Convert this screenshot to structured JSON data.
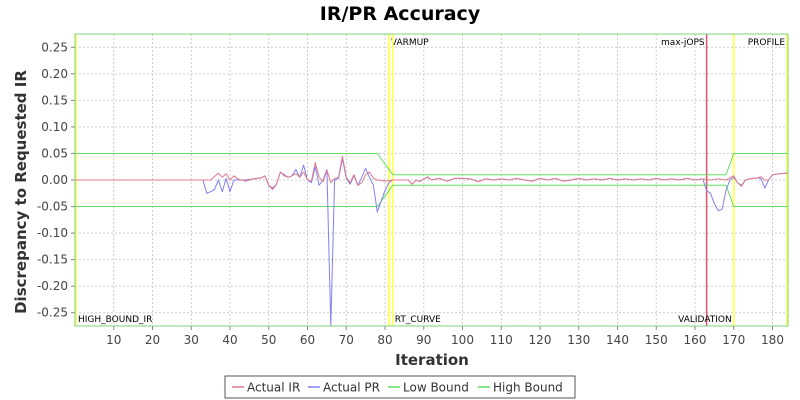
{
  "chart_data": {
    "type": "line",
    "title": "IR/PR Accuracy",
    "xlabel": "Iteration",
    "ylabel": "Discrepancy to Requested IR",
    "xlim": [
      0,
      184
    ],
    "ylim": [
      -0.275,
      0.275
    ],
    "x_ticks": [
      10,
      20,
      30,
      40,
      50,
      60,
      70,
      80,
      90,
      100,
      110,
      120,
      130,
      140,
      150,
      160,
      170,
      180
    ],
    "y_ticks": [
      0.25,
      0.2,
      0.15,
      0.1,
      0.05,
      0.0,
      -0.05,
      -0.1,
      -0.15,
      -0.2,
      -0.25
    ],
    "y_tick_labels": [
      "0.25",
      "0.20",
      "0.15",
      "0.10",
      "0.05",
      "0.00",
      "-0.05",
      "-0.10",
      "-0.15",
      "-0.20",
      "-0.25"
    ],
    "grid": true,
    "legend_position": "bottom",
    "colors": {
      "actual_ir": "#e07b8c",
      "actual_pr": "#8080f0",
      "low_bound": "#60e060",
      "high_bound": "#60e060",
      "marker_yellow": "#ffff66",
      "marker_red": "#e0506a",
      "plot_border": "#7bd67b"
    },
    "series": [
      {
        "name": "Actual IR",
        "key": "actual_ir",
        "points": [
          [
            0,
            0
          ],
          [
            33,
            0
          ],
          [
            35,
            0
          ],
          [
            37,
            0.013
          ],
          [
            38,
            0.005
          ],
          [
            39,
            0.012
          ],
          [
            40,
            0.0
          ],
          [
            41,
            0.008
          ],
          [
            42,
            0.002
          ],
          [
            44,
            -0.002
          ],
          [
            46,
            0.002
          ],
          [
            48,
            0.004
          ],
          [
            49,
            0.008
          ],
          [
            50,
            -0.01
          ],
          [
            51,
            -0.018
          ],
          [
            52,
            -0.008
          ],
          [
            53,
            0.015
          ],
          [
            54,
            0.01
          ],
          [
            55,
            0.005
          ],
          [
            56,
            0.008
          ],
          [
            57,
            0.012
          ],
          [
            58,
            0.005
          ],
          [
            59,
            0.015
          ],
          [
            60,
            0.0
          ],
          [
            61,
            -0.002
          ],
          [
            62,
            0.033
          ],
          [
            63,
            0.005
          ],
          [
            64,
            -0.003
          ],
          [
            65,
            0.018
          ],
          [
            66,
            -0.005
          ],
          [
            67,
            0.003
          ],
          [
            68,
            0.005
          ],
          [
            69,
            0.045
          ],
          [
            70,
            0.005
          ],
          [
            71,
            -0.005
          ],
          [
            72,
            0.01
          ],
          [
            73,
            -0.01
          ],
          [
            74,
            -0.005
          ],
          [
            75,
            0.01
          ],
          [
            76,
            0.015
          ],
          [
            77,
            0.003
          ],
          [
            78,
            0.0
          ],
          [
            80,
            -0.002
          ],
          [
            82,
            0.0
          ],
          [
            84,
            0.0
          ],
          [
            86,
            0.0
          ],
          [
            87,
            -0.008
          ],
          [
            88,
            0.0
          ],
          [
            89,
            -0.003
          ],
          [
            90,
            0.002
          ],
          [
            91,
            0.005
          ],
          [
            92,
            0.0
          ],
          [
            94,
            0.003
          ],
          [
            96,
            -0.002
          ],
          [
            98,
            0.003
          ],
          [
            100,
            0.003
          ],
          [
            102,
            0.002
          ],
          [
            104,
            -0.003
          ],
          [
            106,
            0.002
          ],
          [
            108,
            0.0
          ],
          [
            110,
            0.002
          ],
          [
            112,
            0.0
          ],
          [
            114,
            0.003
          ],
          [
            116,
            0.0
          ],
          [
            118,
            -0.002
          ],
          [
            120,
            0.003
          ],
          [
            122,
            0.0
          ],
          [
            124,
            0.003
          ],
          [
            126,
            -0.002
          ],
          [
            128,
            0.0
          ],
          [
            130,
            0.003
          ],
          [
            132,
            0.0
          ],
          [
            134,
            0.002
          ],
          [
            136,
            0.0
          ],
          [
            138,
            0.003
          ],
          [
            140,
            0.0
          ],
          [
            142,
            0.002
          ],
          [
            144,
            0.0
          ],
          [
            146,
            0.002
          ],
          [
            148,
            0.0
          ],
          [
            150,
            0.003
          ],
          [
            152,
            0.0
          ],
          [
            154,
            0.002
          ],
          [
            156,
            0.0
          ],
          [
            158,
            0.003
          ],
          [
            160,
            0.0
          ],
          [
            162,
            0.002
          ],
          [
            164,
            0.0
          ],
          [
            166,
            0.002
          ],
          [
            168,
            0.0
          ],
          [
            170,
            0.008
          ],
          [
            171,
            -0.005
          ],
          [
            172,
            -0.012
          ],
          [
            173,
            0.0
          ],
          [
            174,
            0.002
          ],
          [
            176,
            0.004
          ],
          [
            177,
            0.006
          ],
          [
            178,
            0.0
          ],
          [
            179,
            0.0
          ],
          [
            180,
            0.01
          ],
          [
            182,
            0.012
          ],
          [
            184,
            0.013
          ]
        ]
      },
      {
        "name": "Actual PR",
        "key": "actual_pr",
        "points": [
          [
            0,
            0
          ],
          [
            33,
            0
          ],
          [
            34,
            -0.025
          ],
          [
            35,
            -0.022
          ],
          [
            36,
            -0.018
          ],
          [
            37,
            0.0
          ],
          [
            38,
            -0.022
          ],
          [
            39,
            0.003
          ],
          [
            40,
            -0.022
          ],
          [
            41,
            0.0
          ],
          [
            42,
            0.0
          ],
          [
            44,
            0.0
          ],
          [
            46,
            0.002
          ],
          [
            48,
            0.004
          ],
          [
            49,
            0.008
          ],
          [
            50,
            -0.01
          ],
          [
            51,
            -0.015
          ],
          [
            52,
            -0.008
          ],
          [
            53,
            0.015
          ],
          [
            54,
            0.008
          ],
          [
            55,
            0.005
          ],
          [
            56,
            0.008
          ],
          [
            57,
            0.02
          ],
          [
            58,
            0.005
          ],
          [
            59,
            0.028
          ],
          [
            60,
            0.0
          ],
          [
            61,
            -0.005
          ],
          [
            62,
            0.025
          ],
          [
            63,
            -0.01
          ],
          [
            64,
            0.0
          ],
          [
            65,
            0.02
          ],
          [
            66,
            -0.275
          ],
          [
            67,
            0.0
          ],
          [
            68,
            0.003
          ],
          [
            69,
            0.04
          ],
          [
            70,
            0.003
          ],
          [
            71,
            -0.008
          ],
          [
            72,
            0.008
          ],
          [
            73,
            -0.01
          ],
          [
            74,
            0.005
          ],
          [
            75,
            0.022
          ],
          [
            76,
            0.005
          ],
          [
            77,
            -0.01
          ],
          [
            78,
            -0.06
          ],
          [
            79,
            -0.04
          ],
          [
            80,
            -0.02
          ],
          [
            81,
            -0.005
          ],
          [
            82,
            0.0
          ],
          [
            84,
            0.0
          ],
          [
            86,
            0.0
          ],
          [
            87,
            -0.008
          ],
          [
            88,
            0.0
          ],
          [
            89,
            -0.003
          ],
          [
            90,
            0.002
          ],
          [
            91,
            0.006
          ],
          [
            92,
            0.0
          ],
          [
            94,
            0.003
          ],
          [
            96,
            -0.002
          ],
          [
            98,
            0.003
          ],
          [
            100,
            0.003
          ],
          [
            102,
            0.002
          ],
          [
            104,
            -0.003
          ],
          [
            106,
            0.002
          ],
          [
            108,
            0.0
          ],
          [
            110,
            0.002
          ],
          [
            112,
            0.0
          ],
          [
            114,
            0.003
          ],
          [
            116,
            0.0
          ],
          [
            118,
            -0.002
          ],
          [
            120,
            0.003
          ],
          [
            122,
            0.0
          ],
          [
            124,
            0.003
          ],
          [
            126,
            -0.002
          ],
          [
            128,
            0.0
          ],
          [
            130,
            0.003
          ],
          [
            132,
            0.0
          ],
          [
            134,
            0.002
          ],
          [
            136,
            0.0
          ],
          [
            138,
            0.003
          ],
          [
            140,
            0.0
          ],
          [
            142,
            0.002
          ],
          [
            144,
            0.0
          ],
          [
            146,
            0.002
          ],
          [
            148,
            0.0
          ],
          [
            150,
            0.003
          ],
          [
            152,
            0.0
          ],
          [
            154,
            0.002
          ],
          [
            156,
            0.0
          ],
          [
            158,
            0.003
          ],
          [
            160,
            0.0
          ],
          [
            162,
            0.002
          ],
          [
            163,
            -0.02
          ],
          [
            164,
            -0.025
          ],
          [
            165,
            -0.045
          ],
          [
            166,
            -0.058
          ],
          [
            167,
            -0.055
          ],
          [
            168,
            -0.02
          ],
          [
            169,
            0.0
          ],
          [
            170,
            0.005
          ],
          [
            171,
            -0.005
          ],
          [
            172,
            -0.01
          ],
          [
            173,
            0.0
          ],
          [
            174,
            0.002
          ],
          [
            176,
            0.004
          ],
          [
            177,
            0.003
          ],
          [
            178,
            -0.015
          ],
          [
            179,
            0.0
          ],
          [
            180,
            0.01
          ],
          [
            182,
            0.012
          ],
          [
            184,
            0.013
          ]
        ]
      },
      {
        "name": "Low Bound",
        "key": "low_bound",
        "points": [
          [
            0,
            -0.05
          ],
          [
            78,
            -0.05
          ],
          [
            82,
            -0.01
          ],
          [
            168,
            -0.01
          ],
          [
            170,
            -0.05
          ],
          [
            184,
            -0.05
          ]
        ]
      },
      {
        "name": "High Bound",
        "key": "high_bound",
        "points": [
          [
            0,
            0.05
          ],
          [
            78,
            0.05
          ],
          [
            82,
            0.01
          ],
          [
            168,
            0.01
          ],
          [
            170,
            0.05
          ],
          [
            184,
            0.05
          ]
        ]
      }
    ],
    "markers": [
      {
        "x": 0,
        "label": "HIGH_BOUND_IR",
        "color_key": "marker_yellow",
        "label_pos": "bottom-right"
      },
      {
        "x": 81,
        "label": "VARMUP",
        "color_key": "marker_yellow",
        "label_pos": "top-right"
      },
      {
        "x": 82,
        "label": "RT_CURVE",
        "color_key": "marker_yellow",
        "label_pos": "bottom-right"
      },
      {
        "x": 163,
        "label": "max-jOPS",
        "color_key": "marker_red",
        "label_pos": "top-left"
      },
      {
        "x": 170,
        "label": "VALIDATION",
        "color_key": "marker_yellow",
        "label_pos": "bottom-left"
      },
      {
        "x": 184,
        "label": "PROFILE",
        "color_key": "marker_yellow",
        "label_pos": "top-left"
      }
    ]
  }
}
